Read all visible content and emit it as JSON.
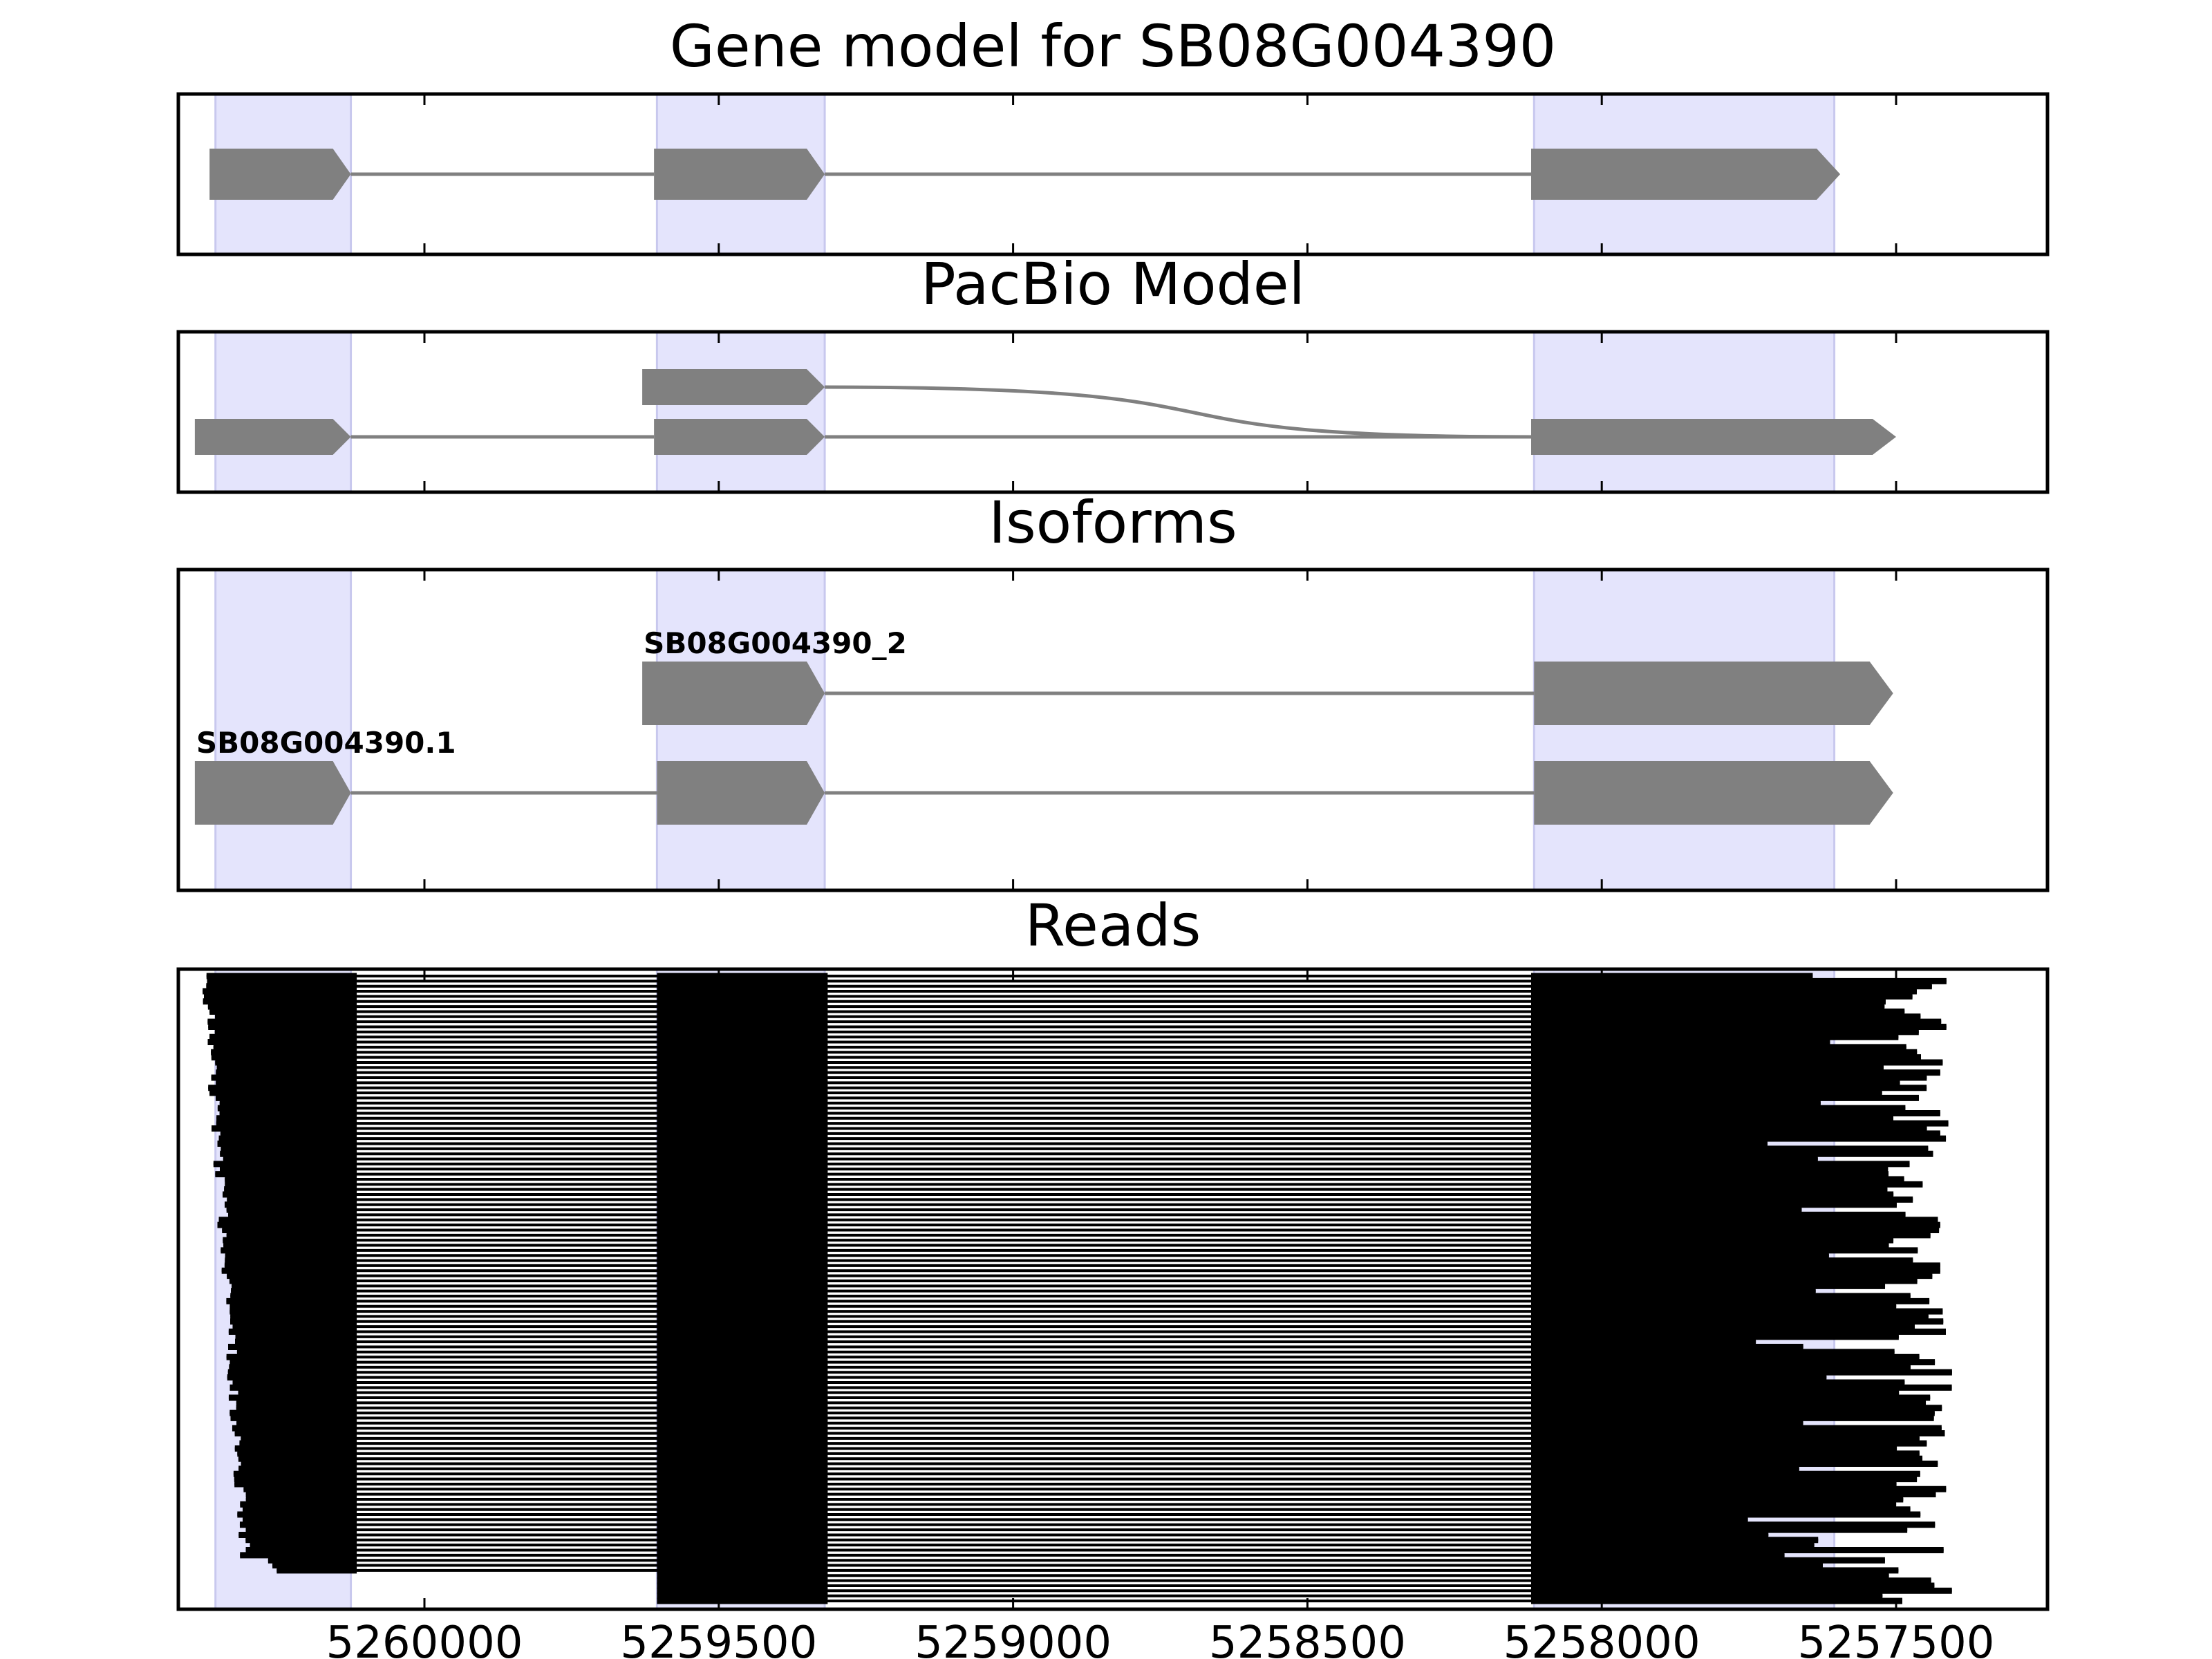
{
  "panels": [
    {
      "key": "gene_model",
      "title": "Gene model for SB08G004390"
    },
    {
      "key": "pacbio",
      "title": "PacBio Model"
    },
    {
      "key": "isoforms",
      "title": "Isoforms"
    },
    {
      "key": "reads",
      "title": "Reads"
    }
  ],
  "chart_data": {
    "type": "gene-track",
    "x_axis": {
      "ticks": [
        5260000,
        5259500,
        5259000,
        5258500,
        5258000,
        5257500
      ],
      "tick_labels": [
        "5260000",
        "5259500",
        "5259000",
        "5258500",
        "5258000",
        "5257500"
      ],
      "range": [
        5260420,
        5257240
      ],
      "reversed": true
    },
    "exon_regions": [
      [
        5260355,
        5260125
      ],
      [
        5259605,
        5259320
      ],
      [
        5258115,
        5257605
      ]
    ],
    "gene_model": {
      "exons": [
        [
          5260365,
          5260125
        ],
        [
          5259610,
          5259320
        ],
        [
          5258120,
          5257595
        ]
      ],
      "strand": "minus"
    },
    "pacbio_model": {
      "top": {
        "exons": [
          [
            5259630,
            5259320
          ]
        ],
        "curve_to": 5258120
      },
      "bottom": {
        "exons": [
          [
            5260390,
            5260125
          ],
          [
            5259610,
            5259320
          ],
          [
            5258120,
            5257500
          ]
        ]
      }
    },
    "isoforms": [
      {
        "name": "SB08G004390_2",
        "exons": [
          [
            5259630,
            5259320
          ],
          [
            5258115,
            5257505
          ]
        ]
      },
      {
        "name": "SB08G004390.1",
        "exons": [
          [
            5260390,
            5260125
          ],
          [
            5259605,
            5259320
          ],
          [
            5258115,
            5257505
          ]
        ]
      }
    ],
    "reads": {
      "count": 124,
      "exon_blocks": [
        [
          5260390,
          5260115
        ],
        [
          5259605,
          5259315
        ],
        [
          5258120,
          5257525
        ]
      ]
    },
    "colors": {
      "exon": "#808080",
      "intron": "#808080",
      "highlight": "#e4e4fc",
      "read": "#000000",
      "frame": "#000000"
    }
  }
}
